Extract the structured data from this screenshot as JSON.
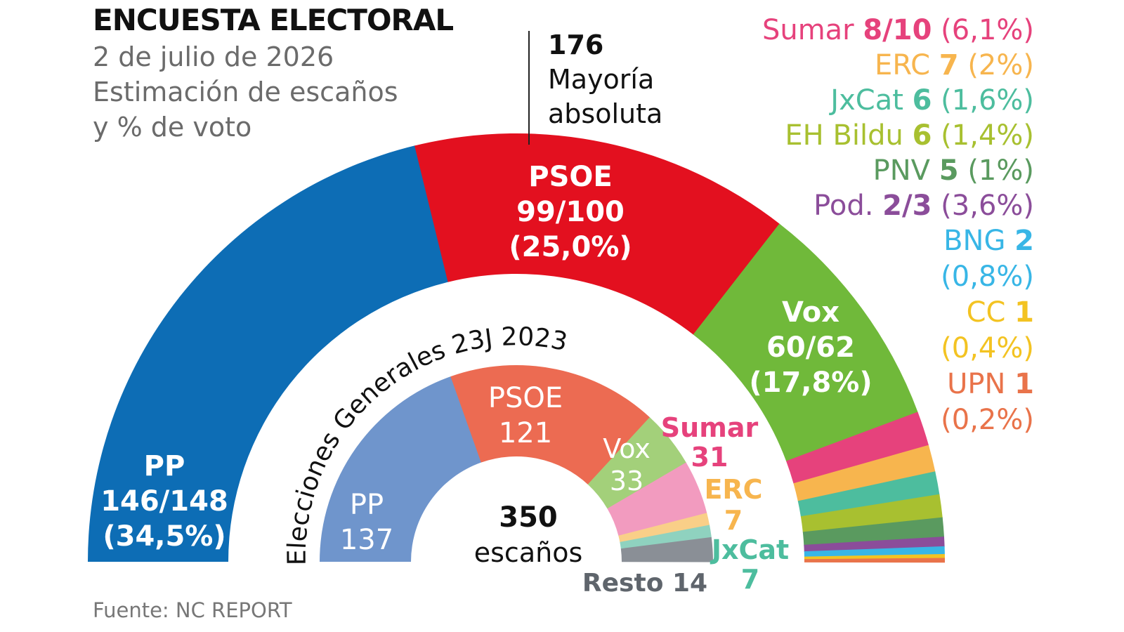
{
  "header": {
    "title": "ENCUESTA ELECTORAL",
    "subtitle_lines": [
      "2 de julio de 2026",
      "Estimación de escaños",
      "y % de voto"
    ]
  },
  "majority": {
    "number": "176",
    "label_lines": [
      "Mayoría",
      "absoluta"
    ]
  },
  "source": "Fuente: NC REPORT",
  "center": {
    "number": "350",
    "label": "escaños"
  },
  "colors": {
    "pp": "#0d6db5",
    "psoe": "#e3101f",
    "vox": "#70b93a",
    "sumar": "#e6427c",
    "erc": "#f7b54e",
    "jxcat": "#4dbd9e",
    "bildu": "#a8c030",
    "pnv": "#5a9a5f",
    "podemos": "#8b4d9a",
    "bng": "#38b6e6",
    "cc": "#f3c322",
    "upn": "#e9734a",
    "pp_2023": "#6f95cc",
    "psoe_2023": "#ec6b52",
    "vox_2023": "#a3d07a",
    "sumar_2023": "#f29bbf",
    "erc_2023": "#f9cf88",
    "jxcat_2023": "#8fd2bf",
    "resto_2023": "#8a8f96"
  },
  "chart_data": [
    {
      "type": "semicircle",
      "title": "ENCUESTA ELECTORAL",
      "total": 350,
      "majority": 176,
      "series": [
        {
          "party": "PP",
          "seats": "146/148",
          "pct": "34,5%",
          "value": 147,
          "color": "#0d6db5"
        },
        {
          "party": "PSOE",
          "seats": "99/100",
          "pct": "25,0%",
          "value": 99.5,
          "color": "#e3101f"
        },
        {
          "party": "Vox",
          "seats": "60/62",
          "pct": "17,8%",
          "value": 61,
          "color": "#70b93a"
        },
        {
          "party": "Sumar",
          "seats": "8/10",
          "pct": "6,1%",
          "value": 9,
          "color": "#e6427c"
        },
        {
          "party": "ERC",
          "seats": "7",
          "pct": "2%",
          "value": 7,
          "color": "#f7b54e"
        },
        {
          "party": "JxCat",
          "seats": "6",
          "pct": "1,6%",
          "value": 6,
          "color": "#4dbd9e"
        },
        {
          "party": "EH Bildu",
          "seats": "6",
          "pct": "1,4%",
          "value": 6,
          "color": "#a8c030"
        },
        {
          "party": "PNV",
          "seats": "5",
          "pct": "1%",
          "value": 5,
          "color": "#5a9a5f"
        },
        {
          "party": "Pod.",
          "seats": "2/3",
          "pct": "3,6%",
          "value": 2.5,
          "color": "#8b4d9a"
        },
        {
          "party": "BNG",
          "seats": "2",
          "pct": "0,8%",
          "value": 2,
          "color": "#38b6e6"
        },
        {
          "party": "CC",
          "seats": "1",
          "pct": "0,4%",
          "value": 1,
          "color": "#f3c322"
        },
        {
          "party": "UPN",
          "seats": "1",
          "pct": "0,2%",
          "value": 1,
          "color": "#e9734a"
        }
      ]
    },
    {
      "type": "semicircle",
      "title": "Elecciones Generales 23J 2023",
      "total": 350,
      "series": [
        {
          "party": "PP",
          "seats": "137",
          "value": 137,
          "color": "#6f95cc"
        },
        {
          "party": "PSOE",
          "seats": "121",
          "value": 121,
          "color": "#ec6b52"
        },
        {
          "party": "Vox",
          "seats": "33",
          "value": 33,
          "color": "#a3d07a"
        },
        {
          "party": "Sumar",
          "seats": "31",
          "value": 31,
          "color": "#f29bbf"
        },
        {
          "party": "ERC",
          "seats": "7",
          "value": 7,
          "color": "#f9cf88"
        },
        {
          "party": "JxCat",
          "seats": "7",
          "value": 7,
          "color": "#8fd2bf"
        },
        {
          "party": "Resto",
          "seats": "14",
          "value": 14,
          "color": "#8a8f96"
        }
      ]
    }
  ]
}
